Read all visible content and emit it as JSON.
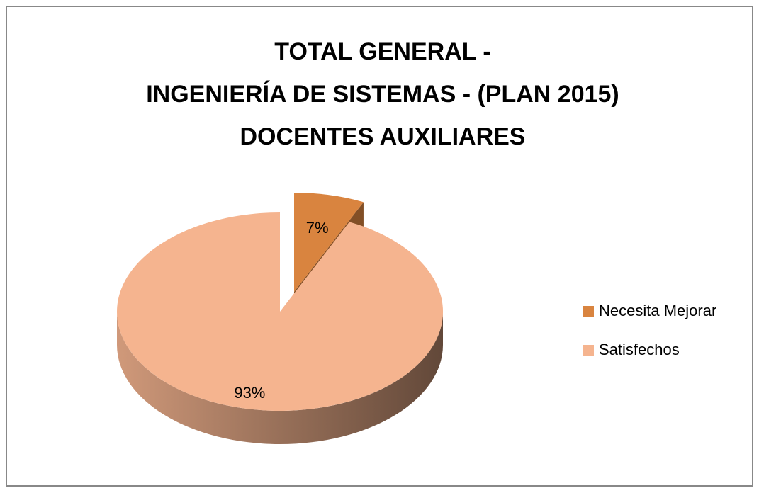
{
  "chart_data": {
    "type": "pie",
    "title": [
      "TOTAL GENERAL -",
      "INGENIERÍA DE SISTEMAS - (PLAN 2015)",
      "DOCENTES AUXILIARES"
    ],
    "categories": [
      "Necesita Mejorar",
      "Satisfechos"
    ],
    "values": [
      7,
      93
    ],
    "value_labels": [
      "7%",
      "93%"
    ],
    "colors": [
      "#d9843f",
      "#f5b48f"
    ],
    "legend": "right"
  }
}
